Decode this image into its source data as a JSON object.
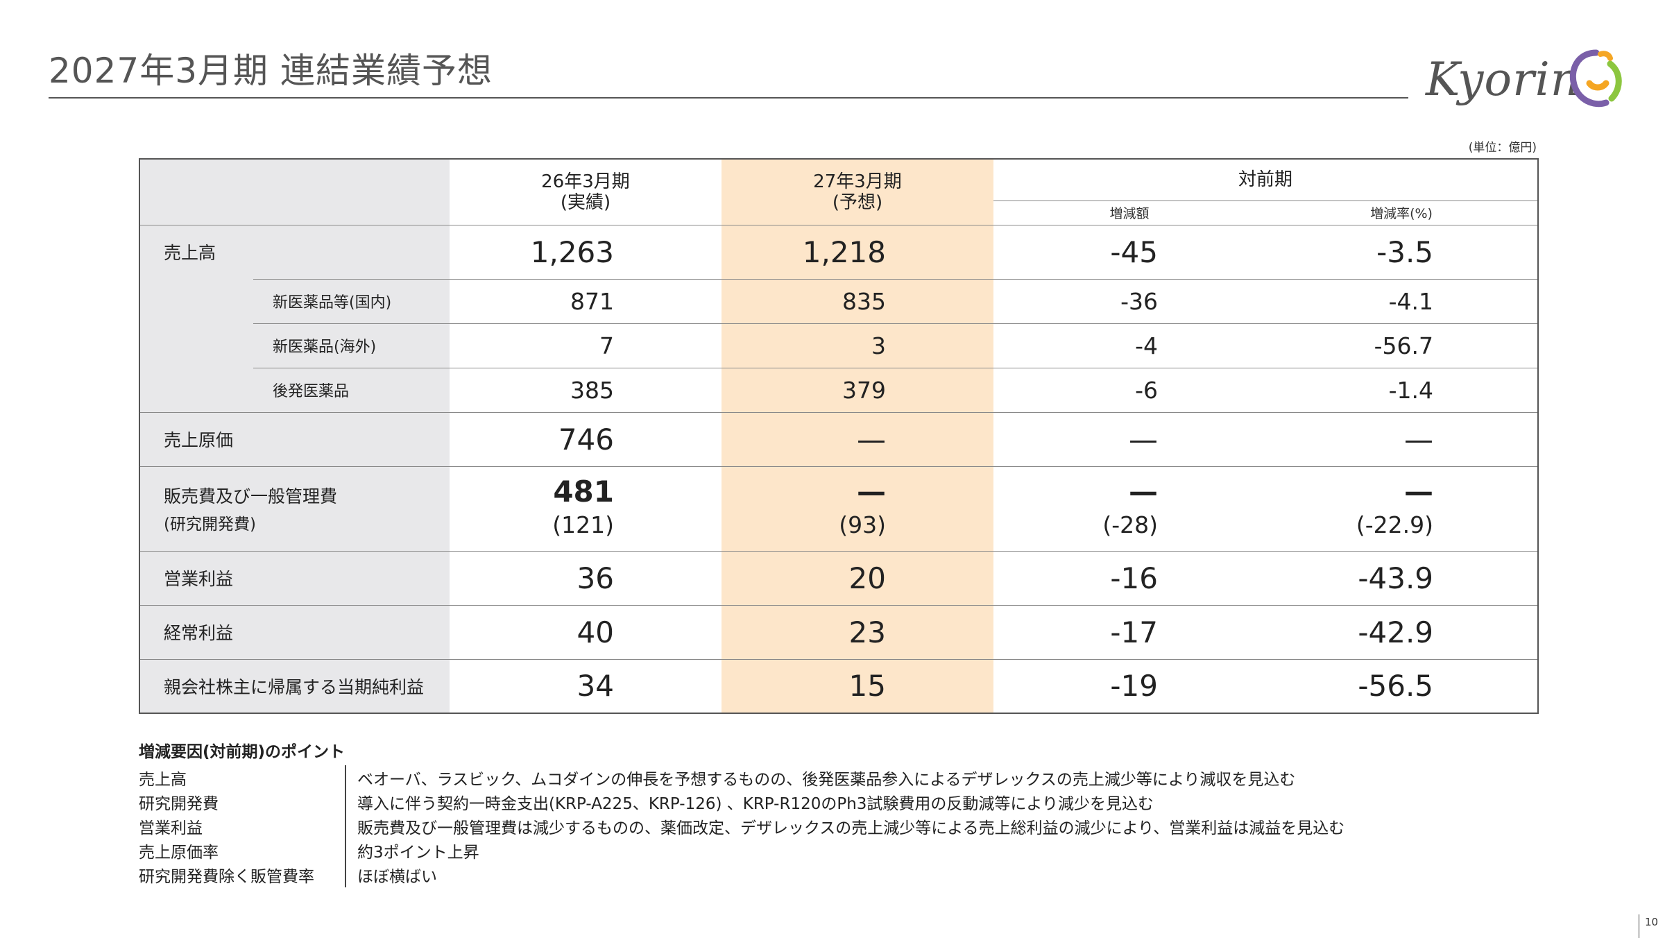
{
  "page": {
    "title": "2027年3月期 連結業績予想",
    "unit": "(単位：億円)",
    "page_number": "10"
  },
  "logo": {
    "text": "Kyorin",
    "colors": [
      "#7a5fa8",
      "#f5a623",
      "#8cc63f"
    ]
  },
  "table": {
    "headers": {
      "col_actual": "26年3月期\n(実績)",
      "col_actual_l1": "26年3月期",
      "col_actual_l2": "(実績)",
      "col_forecast_l1": "27年3月期",
      "col_forecast_l2": "(予想)",
      "col_yoy": "対前期",
      "col_change": "増減額",
      "col_rate": "増減率(%)"
    },
    "rows": {
      "sales": {
        "label": "売上高",
        "actual": "1,263",
        "forecast": "1,218",
        "change": "-45",
        "rate": "-3.5"
      },
      "new_domestic": {
        "label": "新医薬品等(国内)",
        "actual": "871",
        "forecast": "835",
        "change": "-36",
        "rate": "-4.1"
      },
      "new_overseas": {
        "label": "新医薬品(海外)",
        "actual": "7",
        "forecast": "3",
        "change": "-4",
        "rate": "-56.7"
      },
      "generic": {
        "label": "後発医薬品",
        "actual": "385",
        "forecast": "379",
        "change": "-6",
        "rate": "-1.4"
      },
      "cogs": {
        "label": "売上原価",
        "actual": "746",
        "forecast": "—",
        "change": "—",
        "rate": "—"
      },
      "sga": {
        "label": "販売費及び一般管理費",
        "label2": "(研究開発費)",
        "actual": "481",
        "actual2": "(121)",
        "forecast": "—",
        "forecast2": "(93)",
        "change": "—",
        "change2": "(-28)",
        "rate": "—",
        "rate2": "(-22.9)"
      },
      "operating": {
        "label": "営業利益",
        "actual": "36",
        "forecast": "20",
        "change": "-16",
        "rate": "-43.9"
      },
      "ordinary": {
        "label": "経常利益",
        "actual": "40",
        "forecast": "23",
        "change": "-17",
        "rate": "-42.9"
      },
      "net": {
        "label": "親会社株主に帰属する当期純利益",
        "actual": "34",
        "forecast": "15",
        "change": "-19",
        "rate": "-56.5"
      }
    }
  },
  "notes": {
    "title": "増減要因(対前期)のポイント",
    "items": [
      {
        "label": "売上高",
        "text": "ベオーバ、ラスビック、ムコダインの伸長を予想するものの、後発医薬品参入によるデザレックスの売上減少等により減収を見込む"
      },
      {
        "label": "研究開発費",
        "text": "導入に伴う契約一時金支出(KRP-A225、KRP-126) 、KRP-R120のPh3試験費用の反動減等により減少を見込む"
      },
      {
        "label": "営業利益",
        "text": "販売費及び一般管理費は減少するものの、薬価改定、デザレックスの売上減少等による売上総利益の減少により、営業利益は減益を見込む"
      },
      {
        "label": "売上原価率",
        "text": "約3ポイント上昇"
      },
      {
        "label": "研究開発費除く販管費率",
        "text": "ほぼ横ばい"
      }
    ]
  }
}
